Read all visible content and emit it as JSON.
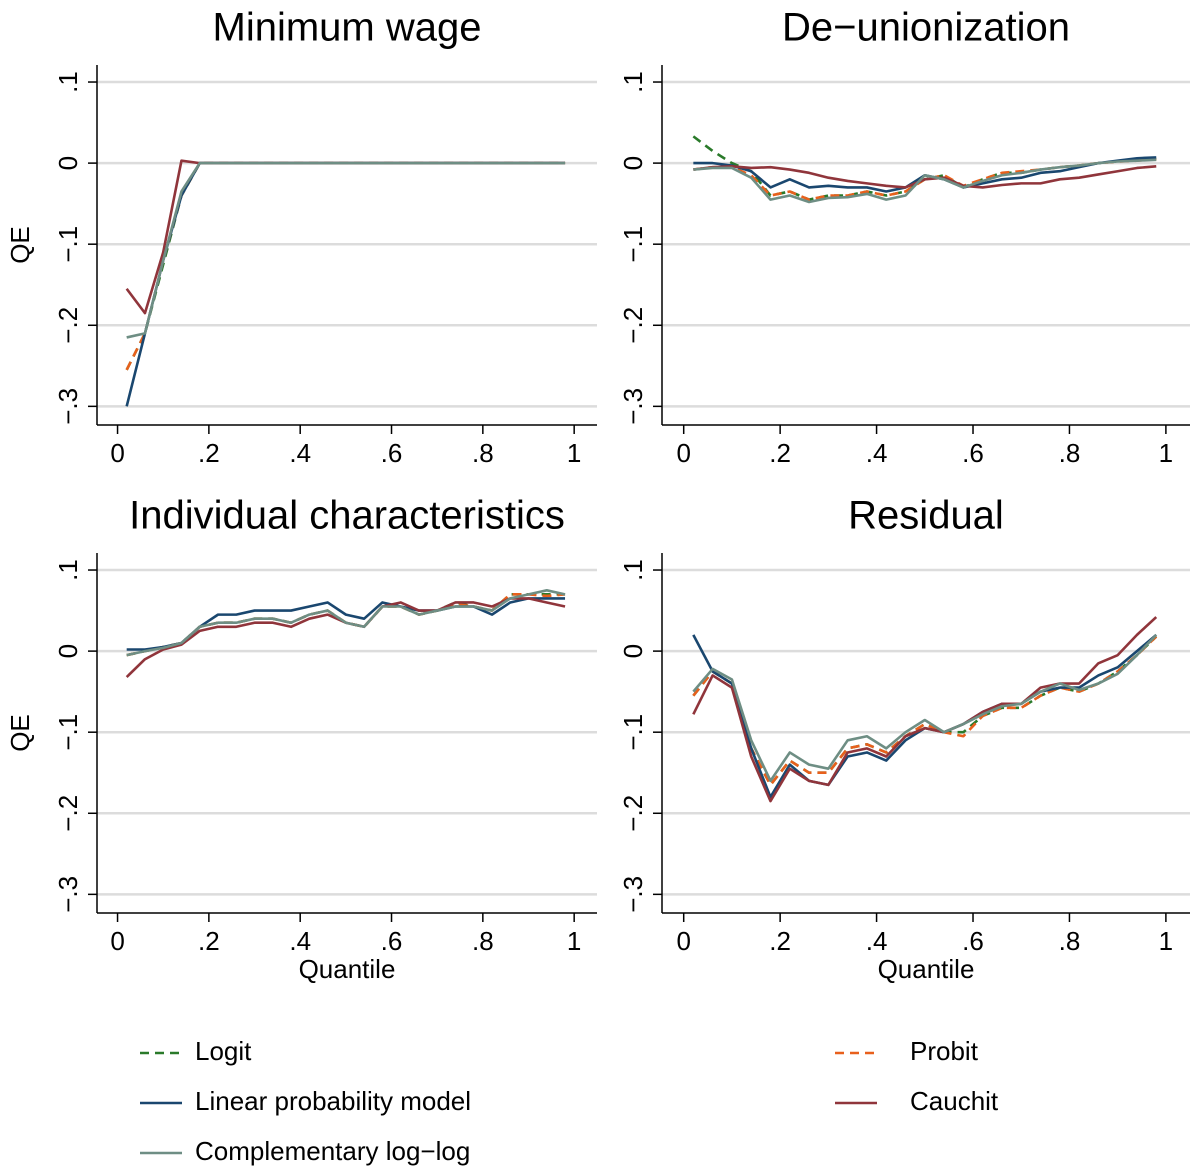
{
  "chart_data": {
    "type": "line",
    "x": [
      0.02,
      0.06,
      0.1,
      0.14,
      0.18,
      0.22,
      0.26,
      0.3,
      0.34,
      0.38,
      0.42,
      0.46,
      0.5,
      0.54,
      0.58,
      0.62,
      0.66,
      0.7,
      0.74,
      0.78,
      0.82,
      0.86,
      0.9,
      0.94,
      0.98
    ],
    "xlim": [
      -0.045,
      1.05
    ],
    "xticks": [
      0,
      {
        "value": 0.2,
        "label": ".2"
      },
      {
        "value": 0.4,
        "label": ".4"
      },
      {
        "value": 0.6,
        "label": ".6"
      },
      {
        "value": 0.8,
        "label": ".8"
      },
      1
    ],
    "ylim": [
      -0.323,
      0.121
    ],
    "yticks": [
      {
        "value": -0.3,
        "label": "−.3"
      },
      {
        "value": -0.2,
        "label": "−.2"
      },
      {
        "value": -0.1,
        "label": "−.1"
      },
      0,
      {
        "value": 0.1,
        "label": ".1"
      }
    ],
    "grid": true,
    "series": [
      {
        "name": "Logit",
        "color": "#2a7a2a",
        "dashed": true
      },
      {
        "name": "Probit",
        "color": "#e8601c",
        "dashed": true
      },
      {
        "name": "Linear probability model",
        "color": "#1a476f",
        "dashed": false
      },
      {
        "name": "Cauchit",
        "color": "#90353b",
        "dashed": false
      },
      {
        "name": "Complementary log−log",
        "color": "#6e8e84",
        "dashed": false
      }
    ],
    "panels": [
      {
        "title": "Minimum wage",
        "ylabel": "QE",
        "values": [
          [
            -0.255,
            -0.21,
            -0.125,
            -0.04,
            0,
            0,
            0,
            0,
            0,
            0,
            0,
            0,
            0,
            0,
            0,
            0,
            0,
            0,
            0,
            0,
            0,
            0,
            0,
            0,
            0
          ],
          [
            -0.255,
            -0.21,
            -0.12,
            -0.04,
            0,
            0,
            0,
            0,
            0,
            0,
            0,
            0,
            0,
            0,
            0,
            0,
            0,
            0,
            0,
            0,
            0,
            0,
            0,
            0,
            0
          ],
          [
            -0.3,
            -0.21,
            -0.12,
            -0.04,
            0,
            0,
            0,
            0,
            0,
            0,
            0,
            0,
            0,
            0,
            0,
            0,
            0,
            0,
            0,
            0,
            0,
            0,
            0,
            0,
            0
          ],
          [
            -0.155,
            -0.185,
            -0.11,
            0.003,
            0,
            0,
            0,
            0,
            0,
            0,
            0,
            0,
            0,
            0,
            0,
            0,
            0,
            0,
            0,
            0,
            0,
            0,
            0,
            0,
            0
          ],
          [
            -0.215,
            -0.21,
            -0.12,
            -0.035,
            0,
            0,
            0,
            0,
            0,
            0,
            0,
            0,
            0,
            0,
            0,
            0,
            0,
            0,
            0,
            0,
            0,
            0,
            0,
            0,
            0
          ]
        ]
      },
      {
        "title": "De−unionization",
        "values": [
          [
            0.033,
            0.015,
            0.0,
            -0.01,
            -0.04,
            -0.035,
            -0.045,
            -0.04,
            -0.04,
            -0.035,
            -0.04,
            -0.035,
            -0.02,
            -0.015,
            -0.03,
            -0.02,
            -0.012,
            -0.012,
            -0.008,
            -0.005,
            -0.003,
            0,
            0.002,
            0.004,
            0.005
          ],
          [
            -0.008,
            -0.005,
            -0.005,
            -0.015,
            -0.04,
            -0.035,
            -0.045,
            -0.04,
            -0.04,
            -0.035,
            -0.04,
            -0.035,
            -0.02,
            -0.015,
            -0.028,
            -0.02,
            -0.012,
            -0.01,
            -0.008,
            -0.005,
            -0.003,
            0,
            0.002,
            0.003,
            0.005
          ],
          [
            0,
            0,
            -0.003,
            -0.01,
            -0.03,
            -0.02,
            -0.03,
            -0.028,
            -0.03,
            -0.03,
            -0.035,
            -0.03,
            -0.015,
            -0.02,
            -0.03,
            -0.025,
            -0.02,
            -0.018,
            -0.012,
            -0.01,
            -0.005,
            0,
            0.003,
            0.006,
            0.007
          ],
          [
            -0.008,
            -0.005,
            -0.004,
            -0.006,
            -0.005,
            -0.008,
            -0.012,
            -0.018,
            -0.022,
            -0.025,
            -0.028,
            -0.03,
            -0.02,
            -0.018,
            -0.028,
            -0.03,
            -0.027,
            -0.025,
            -0.025,
            -0.02,
            -0.018,
            -0.014,
            -0.01,
            -0.006,
            -0.004
          ],
          [
            -0.008,
            -0.006,
            -0.006,
            -0.018,
            -0.045,
            -0.04,
            -0.048,
            -0.043,
            -0.042,
            -0.038,
            -0.045,
            -0.04,
            -0.015,
            -0.02,
            -0.03,
            -0.022,
            -0.015,
            -0.012,
            -0.008,
            -0.005,
            -0.003,
            0,
            0.002,
            0.003,
            0.004
          ]
        ]
      },
      {
        "title": "Individual characteristics",
        "ylabel": "QE",
        "xlabel": "Quantile",
        "values": [
          [
            -0.005,
            0,
            0.005,
            0.01,
            0.03,
            0.035,
            0.035,
            0.04,
            0.04,
            0.035,
            0.045,
            0.05,
            0.035,
            0.03,
            0.055,
            0.055,
            0.045,
            0.05,
            0.06,
            0.055,
            0.05,
            0.07,
            0.07,
            0.07,
            0.07
          ],
          [
            -0.005,
            0,
            0.005,
            0.01,
            0.03,
            0.035,
            0.035,
            0.04,
            0.04,
            0.035,
            0.045,
            0.05,
            0.035,
            0.03,
            0.055,
            0.055,
            0.045,
            0.05,
            0.058,
            0.055,
            0.05,
            0.07,
            0.07,
            0.068,
            0.07
          ],
          [
            0.002,
            0.002,
            0.005,
            0.01,
            0.03,
            0.045,
            0.045,
            0.05,
            0.05,
            0.05,
            0.055,
            0.06,
            0.045,
            0.04,
            0.06,
            0.055,
            0.05,
            0.05,
            0.055,
            0.055,
            0.045,
            0.06,
            0.065,
            0.065,
            0.065
          ],
          [
            -0.032,
            -0.01,
            0.002,
            0.008,
            0.025,
            0.03,
            0.03,
            0.035,
            0.035,
            0.03,
            0.04,
            0.045,
            0.035,
            0.03,
            0.055,
            0.06,
            0.05,
            0.05,
            0.06,
            0.06,
            0.055,
            0.065,
            0.065,
            0.06,
            0.055
          ],
          [
            -0.005,
            0,
            0.004,
            0.01,
            0.03,
            0.035,
            0.035,
            0.04,
            0.04,
            0.035,
            0.045,
            0.05,
            0.035,
            0.03,
            0.055,
            0.055,
            0.045,
            0.05,
            0.055,
            0.055,
            0.05,
            0.065,
            0.07,
            0.075,
            0.07
          ]
        ]
      },
      {
        "title": "Residual",
        "xlabel": "Quantile",
        "values": [
          [
            -0.055,
            -0.025,
            -0.04,
            -0.12,
            -0.165,
            -0.135,
            -0.15,
            -0.15,
            -0.12,
            -0.115,
            -0.125,
            -0.105,
            -0.09,
            -0.1,
            -0.1,
            -0.08,
            -0.07,
            -0.07,
            -0.055,
            -0.045,
            -0.05,
            -0.04,
            -0.025,
            -0.005,
            0.018
          ],
          [
            -0.055,
            -0.025,
            -0.04,
            -0.12,
            -0.165,
            -0.135,
            -0.15,
            -0.15,
            -0.12,
            -0.115,
            -0.125,
            -0.105,
            -0.09,
            -0.1,
            -0.105,
            -0.08,
            -0.07,
            -0.07,
            -0.055,
            -0.045,
            -0.05,
            -0.04,
            -0.025,
            -0.005,
            0.018
          ],
          [
            0.02,
            -0.025,
            -0.04,
            -0.12,
            -0.18,
            -0.14,
            -0.16,
            -0.165,
            -0.13,
            -0.125,
            -0.135,
            -0.11,
            -0.095,
            -0.1,
            -0.09,
            -0.075,
            -0.065,
            -0.065,
            -0.05,
            -0.045,
            -0.045,
            -0.03,
            -0.02,
            0.0,
            0.02
          ],
          [
            -0.078,
            -0.03,
            -0.045,
            -0.13,
            -0.185,
            -0.145,
            -0.16,
            -0.165,
            -0.125,
            -0.12,
            -0.13,
            -0.105,
            -0.095,
            -0.1,
            -0.09,
            -0.075,
            -0.065,
            -0.065,
            -0.045,
            -0.04,
            -0.04,
            -0.015,
            -0.005,
            0.02,
            0.042
          ],
          [
            -0.05,
            -0.022,
            -0.035,
            -0.11,
            -0.16,
            -0.125,
            -0.14,
            -0.145,
            -0.11,
            -0.105,
            -0.12,
            -0.1,
            -0.085,
            -0.1,
            -0.09,
            -0.078,
            -0.068,
            -0.065,
            -0.05,
            -0.04,
            -0.048,
            -0.04,
            -0.028,
            -0.005,
            0.02
          ]
        ]
      }
    ]
  }
}
